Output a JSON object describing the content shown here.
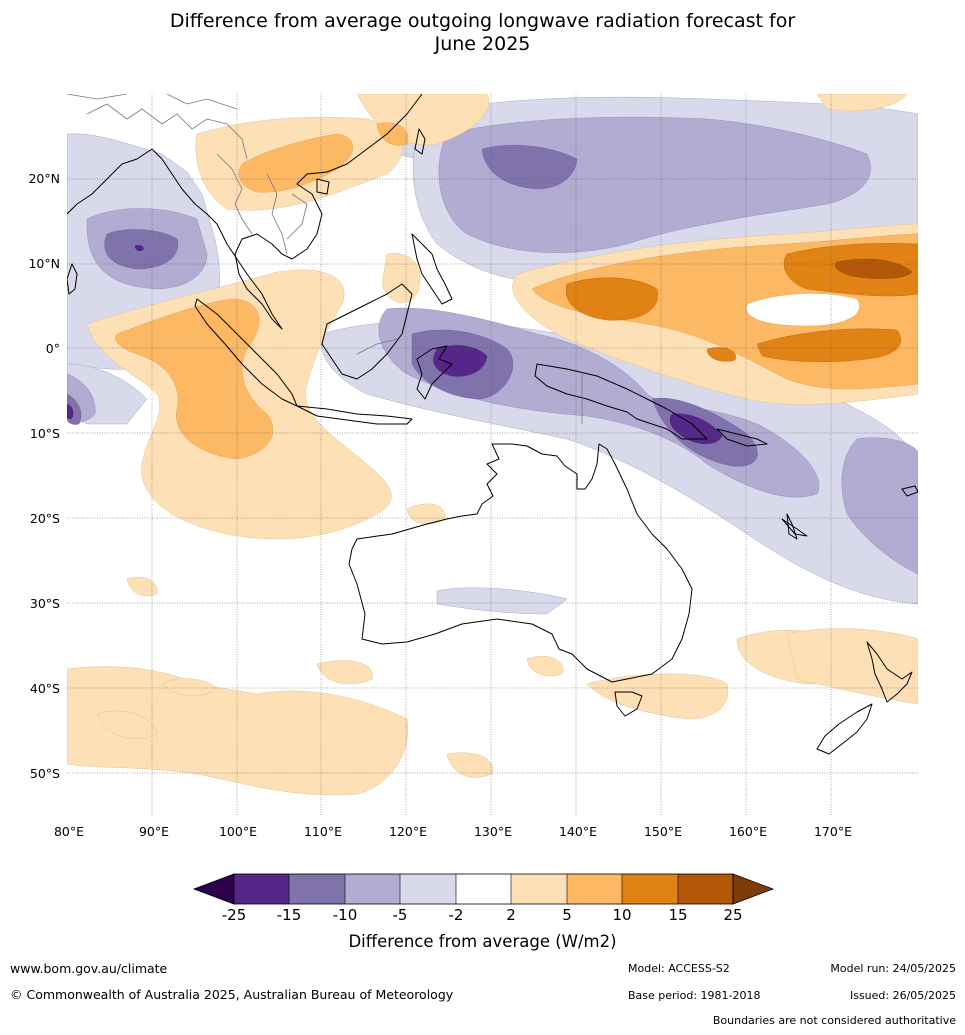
{
  "title_line1": "Difference from average outgoing longwave radiation forecast for",
  "title_line2": "June 2025",
  "lat_labels": [
    "20°N",
    "10°N",
    "0°",
    "10°S",
    "20°S",
    "30°S",
    "40°S",
    "50°S"
  ],
  "lon_labels": [
    "80°E",
    "90°E",
    "100°E",
    "110°E",
    "120°E",
    "130°E",
    "140°E",
    "150°E",
    "160°E",
    "170°E"
  ],
  "colorbar": {
    "ticks": [
      "-25",
      "-15",
      "-10",
      "-5",
      "-2",
      "2",
      "5",
      "10",
      "15",
      "25"
    ],
    "colors": [
      "#2d004b",
      "#542788",
      "#8073ac",
      "#b2abd2",
      "#d8daeb",
      "#ffffff",
      "#fee0b6",
      "#fdb863",
      "#e08214",
      "#b35806",
      "#7f3b08"
    ],
    "label": "Difference from average (W/m2)"
  },
  "footer": {
    "website": "www.bom.gov.au/climate",
    "copyright": "© Commonwealth of Australia 2025, Australian Bureau of Meteorology",
    "model": "Model: ACCESS-S2",
    "base_period": "Base period: 1981-2018",
    "model_run": "Model run: 24/05/2025",
    "issued": "Issued: 26/05/2025",
    "disclaimer": "Boundaries are not considered authoritative"
  }
}
